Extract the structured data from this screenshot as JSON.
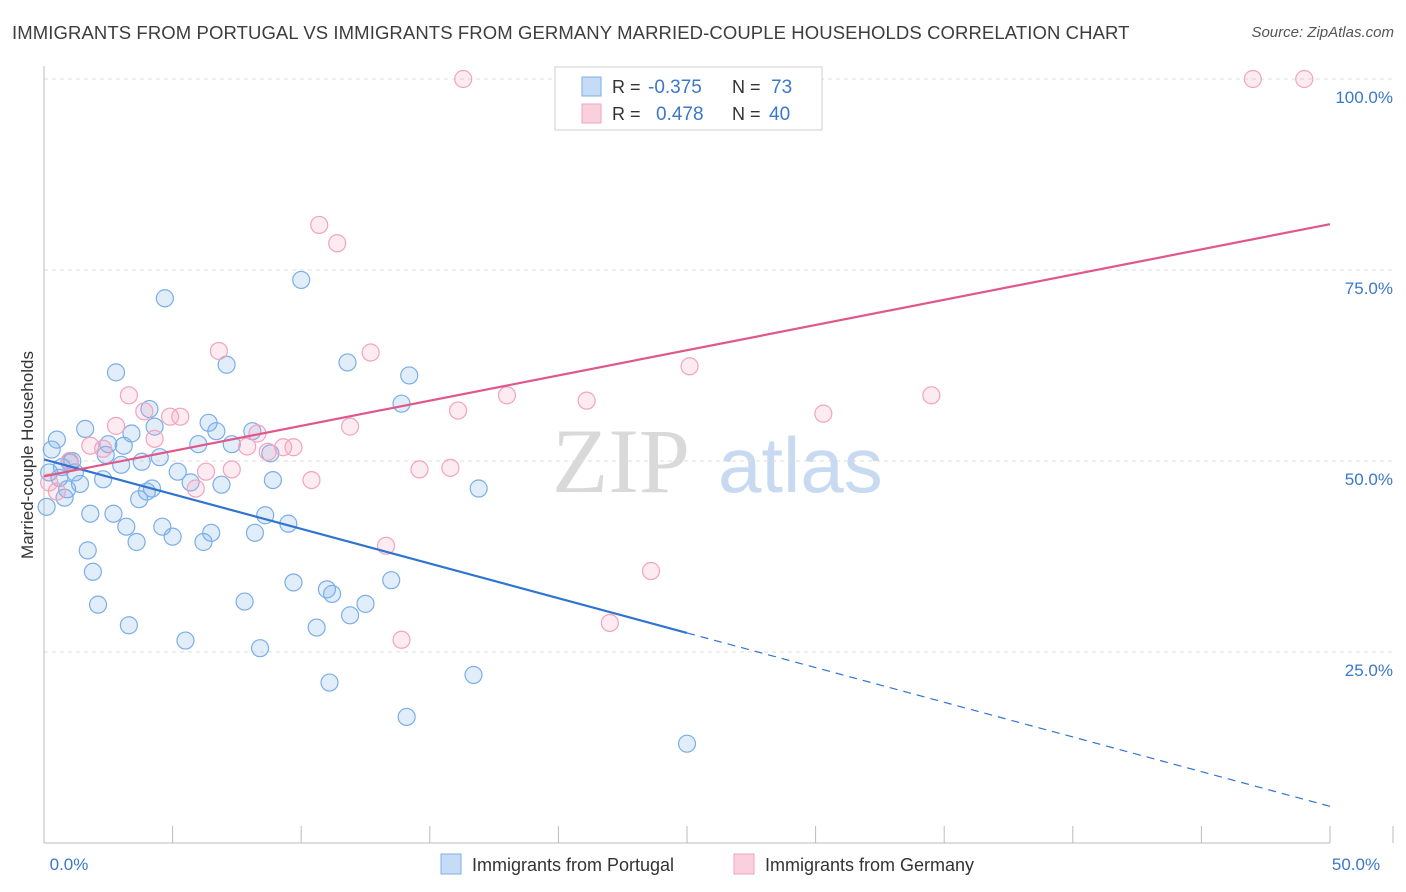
{
  "chart_data": {
    "type": "scatter",
    "title": "IMMIGRANTS FROM PORTUGAL VS IMMIGRANTS FROM GERMANY MARRIED-COUPLE HOUSEHOLDS CORRELATION CHART",
    "source": "Source: ZipAtlas.com",
    "ylabel": "Married-couple Households",
    "xlabel": "",
    "xlim": [
      0,
      50
    ],
    "ylim": [
      0,
      102
    ],
    "x_tick_labels": [
      "0.0%",
      "50.0%"
    ],
    "y_ticks": [
      25,
      50,
      75,
      100
    ],
    "y_tick_labels": [
      "25.0%",
      "50.0%",
      "75.0%",
      "100.0%"
    ],
    "grid": true,
    "watermark": {
      "zip": "ZIP",
      "atlas": "atlas"
    },
    "legend": {
      "r_label": "R =",
      "n_label": "N =",
      "entries": [
        {
          "r": "-0.375",
          "n": "73"
        },
        {
          "r": "0.478",
          "n": "40"
        }
      ]
    },
    "series": [
      {
        "name": "Immigrants from Portugal",
        "color": "#7aaee8",
        "line_color": "#2f74d0",
        "trend": {
          "x0": 0,
          "y0": 50.2,
          "x1": 50,
          "y1": 4.8,
          "solid_until": 25
        },
        "points": [
          [
            0.2,
            48.5
          ],
          [
            0.3,
            51.5
          ],
          [
            0.5,
            52.8
          ],
          [
            0.6,
            47.8
          ],
          [
            0.7,
            49.2
          ],
          [
            0.8,
            45.2
          ],
          [
            0.9,
            46.3
          ],
          [
            1.0,
            49.8
          ],
          [
            1.1,
            50.0
          ],
          [
            1.2,
            48.5
          ],
          [
            1.4,
            47.0
          ],
          [
            1.6,
            54.2
          ],
          [
            1.7,
            38.3
          ],
          [
            1.8,
            43.1
          ],
          [
            1.9,
            35.5
          ],
          [
            2.1,
            31.2
          ],
          [
            2.3,
            47.6
          ],
          [
            2.4,
            50.8
          ],
          [
            2.5,
            52.2
          ],
          [
            2.7,
            43.1
          ],
          [
            2.8,
            61.6
          ],
          [
            3.0,
            49.5
          ],
          [
            3.1,
            52.0
          ],
          [
            3.2,
            41.4
          ],
          [
            3.3,
            28.5
          ],
          [
            3.4,
            53.6
          ],
          [
            3.6,
            39.4
          ],
          [
            3.7,
            45.0
          ],
          [
            3.8,
            49.9
          ],
          [
            4.0,
            46.0
          ],
          [
            4.1,
            56.8
          ],
          [
            4.2,
            46.4
          ],
          [
            4.3,
            54.5
          ],
          [
            4.5,
            50.5
          ],
          [
            4.6,
            41.4
          ],
          [
            4.7,
            71.3
          ],
          [
            5.0,
            40.1
          ],
          [
            5.2,
            48.6
          ],
          [
            5.5,
            26.5
          ],
          [
            5.7,
            47.2
          ],
          [
            6.0,
            52.2
          ],
          [
            6.2,
            39.4
          ],
          [
            6.4,
            55.0
          ],
          [
            6.5,
            40.6
          ],
          [
            6.7,
            53.9
          ],
          [
            6.9,
            46.9
          ],
          [
            7.1,
            62.6
          ],
          [
            7.3,
            52.2
          ],
          [
            7.8,
            31.6
          ],
          [
            8.1,
            53.9
          ],
          [
            8.2,
            40.6
          ],
          [
            8.4,
            25.5
          ],
          [
            8.6,
            42.9
          ],
          [
            8.8,
            51.0
          ],
          [
            8.9,
            47.5
          ],
          [
            9.5,
            41.8
          ],
          [
            9.7,
            34.1
          ],
          [
            10.0,
            73.7
          ],
          [
            10.6,
            28.2
          ],
          [
            11.0,
            33.2
          ],
          [
            11.1,
            21.0
          ],
          [
            11.2,
            32.6
          ],
          [
            11.8,
            62.9
          ],
          [
            11.9,
            29.8
          ],
          [
            12.5,
            31.3
          ],
          [
            13.5,
            34.4
          ],
          [
            13.9,
            57.5
          ],
          [
            14.1,
            16.5
          ],
          [
            14.2,
            61.2
          ],
          [
            16.7,
            22.0
          ],
          [
            16.9,
            46.4
          ],
          [
            25.0,
            13.0
          ],
          [
            0.1,
            44.0
          ]
        ]
      },
      {
        "name": "Immigrants from Germany",
        "color": "#f3a3bd",
        "line_color": "#e0588a",
        "trend": {
          "x0": 0,
          "y0": 48.0,
          "x1": 50,
          "y1": 81.0
        },
        "points": [
          [
            0.2,
            47.2
          ],
          [
            0.5,
            46.0
          ],
          [
            1.0,
            50.0
          ],
          [
            1.8,
            52.0
          ],
          [
            2.3,
            51.6
          ],
          [
            2.8,
            54.6
          ],
          [
            3.3,
            58.6
          ],
          [
            3.9,
            56.5
          ],
          [
            4.3,
            52.9
          ],
          [
            4.9,
            55.8
          ],
          [
            5.3,
            55.8
          ],
          [
            5.9,
            46.4
          ],
          [
            6.3,
            48.6
          ],
          [
            6.8,
            64.4
          ],
          [
            7.3,
            48.9
          ],
          [
            7.9,
            51.9
          ],
          [
            8.3,
            53.6
          ],
          [
            8.7,
            51.2
          ],
          [
            9.3,
            51.8
          ],
          [
            9.7,
            51.8
          ],
          [
            10.4,
            47.5
          ],
          [
            10.7,
            80.9
          ],
          [
            11.4,
            78.5
          ],
          [
            11.9,
            54.5
          ],
          [
            12.7,
            64.2
          ],
          [
            13.3,
            38.9
          ],
          [
            13.9,
            26.6
          ],
          [
            14.6,
            48.9
          ],
          [
            15.8,
            49.1
          ],
          [
            16.3,
            100
          ],
          [
            16.1,
            56.6
          ],
          [
            18.0,
            58.6
          ],
          [
            21.1,
            57.9
          ],
          [
            22.0,
            28.8
          ],
          [
            23.6,
            35.6
          ],
          [
            25.1,
            62.4
          ],
          [
            30.3,
            56.2
          ],
          [
            34.5,
            58.6
          ],
          [
            47.0,
            100
          ],
          [
            49.0,
            100
          ]
        ]
      }
    ]
  }
}
